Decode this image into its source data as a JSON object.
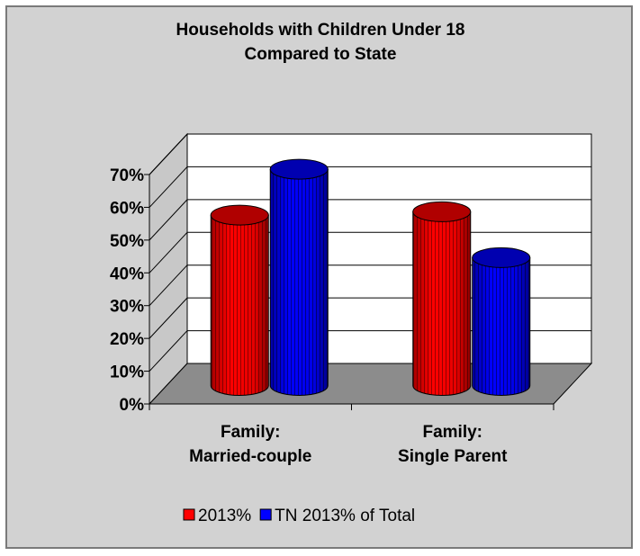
{
  "chart_data": {
    "type": "bar",
    "title": "Households with Children Under 18",
    "subtitle": "Compared to State",
    "categories": [
      [
        "Family:",
        "Married-couple"
      ],
      [
        "Family:",
        "Single Parent"
      ]
    ],
    "series": [
      {
        "name": "2013%",
        "values": [
          0.52,
          0.53
        ],
        "color": "#ff0000"
      },
      {
        "name": "TN 2013% of Total",
        "values": [
          0.66,
          0.39
        ],
        "color": "#0000ff"
      }
    ],
    "ylim": [
      0,
      0.7
    ],
    "yticks": [
      0,
      0.1,
      0.2,
      0.3,
      0.4,
      0.5,
      0.6,
      0.7
    ],
    "ytick_labels": [
      "0%",
      "10%",
      "20%",
      "30%",
      "40%",
      "50%",
      "60%",
      "70%"
    ],
    "grid": true,
    "legend_position": "bottom",
    "style": "3d-cylinder"
  }
}
